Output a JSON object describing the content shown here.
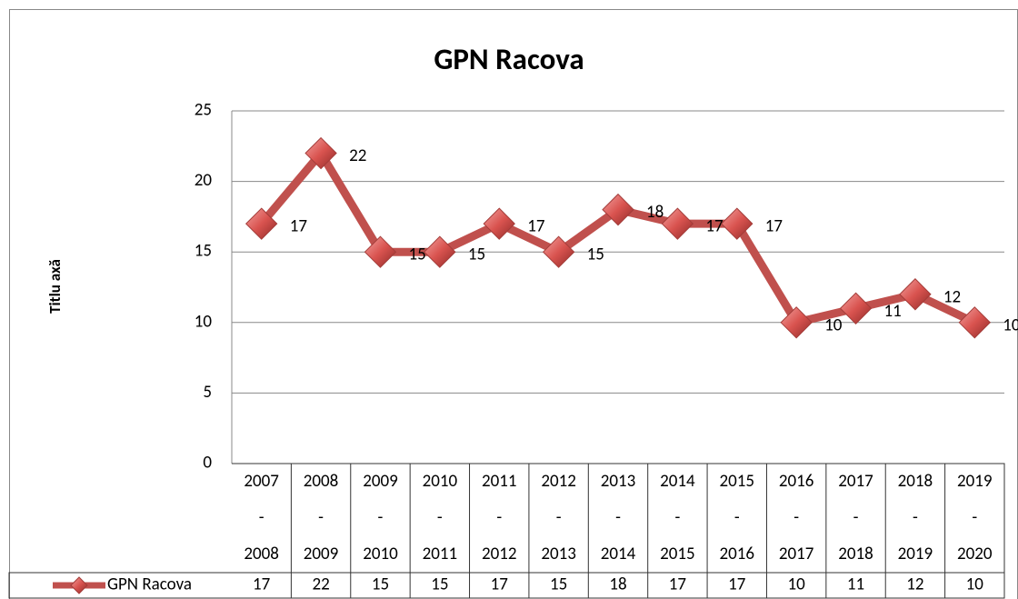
{
  "chart_data": {
    "type": "line",
    "title": "GPN Racova",
    "y_label": "Titlu axă",
    "categories": [
      "2007 - 2008",
      "2008 - 2009",
      "2009 - 2010",
      "2010 - 2011",
      "2011 - 2012",
      "2012 - 2013",
      "2013 - 2014",
      "2014 - 2015",
      "2015 - 2016",
      "2016 - 2017",
      "2017 - 2018",
      "2018 - 2019",
      "2019 - 2020"
    ],
    "series": [
      {
        "name": "GPN Racova",
        "color": "#c0504d",
        "values": [
          17,
          22,
          15,
          15,
          17,
          15,
          18,
          17,
          17,
          10,
          11,
          12,
          10
        ]
      }
    ],
    "ylim": [
      0,
      25
    ],
    "yticks": [
      0,
      5,
      10,
      15,
      20,
      25
    ],
    "grid": true,
    "data_table": true
  }
}
